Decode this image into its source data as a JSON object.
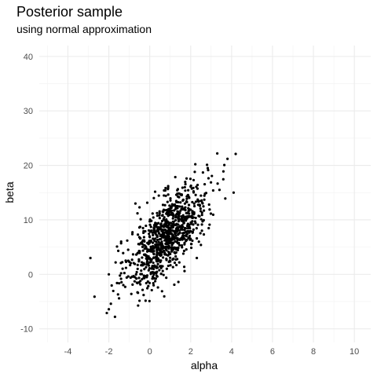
{
  "chart_data": {
    "type": "scatter",
    "title": "Posterior sample",
    "subtitle": "using normal approximation",
    "xlabel": "alpha",
    "ylabel": "beta",
    "xlim": [
      -5.4,
      10.8
    ],
    "ylim": [
      -12.5,
      42.0
    ],
    "x_ticks": [
      -4,
      -2,
      0,
      2,
      4,
      6,
      8,
      10
    ],
    "x_tick_labels": [
      "-4",
      "-2",
      "0",
      "2",
      "4",
      "6",
      "8",
      "10"
    ],
    "y_ticks": [
      -10,
      0,
      10,
      20,
      30,
      40
    ],
    "y_tick_labels": [
      "-10",
      "0",
      "10",
      "20",
      "30",
      "40"
    ],
    "grid": true,
    "point_color": "#000000",
    "points": [
      [
        4.2,
        22.1
      ],
      [
        3.3,
        22.2
      ],
      [
        3.8,
        21.2
      ],
      [
        4.1,
        15.0
      ],
      [
        3.6,
        18.9
      ],
      [
        2.8,
        20.1
      ],
      [
        2.6,
        18.7
      ],
      [
        2.2,
        18.8
      ],
      [
        1.8,
        17.6
      ],
      [
        2.7,
        14.8
      ],
      [
        3.1,
        15.4
      ],
      [
        2.0,
        16.1
      ],
      [
        1.6,
        15.9
      ],
      [
        1.3,
        14.6
      ],
      [
        0.9,
        16.2
      ],
      [
        -2.9,
        3.0
      ],
      [
        -2.7,
        -4.1
      ],
      [
        -2.0,
        -6.4
      ],
      [
        -2.1,
        -7.1
      ],
      [
        -1.7,
        -7.8
      ],
      [
        -1.9,
        -5.4
      ],
      [
        -1.5,
        -4.4
      ],
      [
        -2.0,
        0.0
      ],
      [
        -1.6,
        -1.6
      ],
      [
        -1.4,
        0.2
      ],
      [
        -1.2,
        -2.3
      ],
      [
        -0.9,
        -3.6
      ],
      [
        -0.6,
        -3.3
      ],
      [
        -0.3,
        -3.8
      ],
      [
        0.1,
        -2.9
      ],
      [
        0.4,
        -2.4
      ],
      [
        0.6,
        -3.1
      ],
      [
        1.2,
        -1.9
      ],
      [
        1.4,
        -1.4
      ],
      [
        1.7,
        0.6
      ],
      [
        2.3,
        3.0
      ],
      [
        2.5,
        5.4
      ],
      [
        2.3,
        6.6
      ],
      [
        -0.5,
        12.3
      ],
      [
        -0.6,
        11.2
      ],
      [
        -0.7,
        13.0
      ],
      [
        -1.1,
        6.2
      ],
      [
        -1.4,
        5.7
      ],
      [
        -1.6,
        5.1
      ],
      [
        -1.3,
        3.9
      ],
      [
        -1.0,
        2.3
      ],
      [
        0.2,
        14.0
      ],
      [
        0.7,
        15.4
      ],
      [
        1.5,
        13.2
      ],
      [
        2.9,
        12.8
      ]
    ]
  }
}
